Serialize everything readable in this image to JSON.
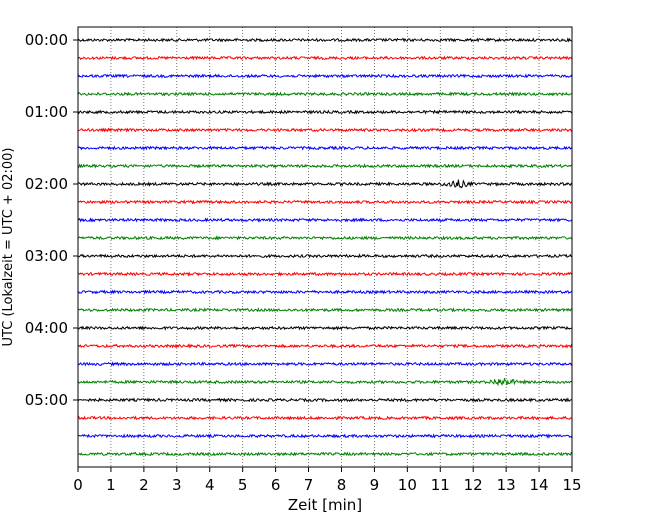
{
  "chart_data": {
    "type": "line",
    "title": "",
    "xlabel": "Zeit  [min]",
    "ylabel": "UTC (Lokalzeit = UTC + 02:00)",
    "xlim": [
      0,
      15
    ],
    "x_ticks": [
      0,
      1,
      2,
      3,
      4,
      5,
      6,
      7,
      8,
      9,
      10,
      11,
      12,
      13,
      14,
      15
    ],
    "x_tick_labels": [
      "0",
      "1",
      "2",
      "3",
      "4",
      "5",
      "6",
      "7",
      "8",
      "9",
      "10",
      "11",
      "12",
      "13",
      "14",
      "15"
    ],
    "y_tick_labels": [
      "00:00",
      "01:00",
      "02:00",
      "03:00",
      "04:00",
      "05:00"
    ],
    "trace_interval_min": 15,
    "trace_count": 24,
    "trace_colors": [
      "#000000",
      "#ff0000",
      "#0000ff",
      "#008000"
    ],
    "grid": "vertical dotted at each minute",
    "events": [
      {
        "trace": 8,
        "x_min": 11.5,
        "note": "small disturbance"
      },
      {
        "trace": 19,
        "x_min": 12.9,
        "note": "small disturbance"
      }
    ]
  }
}
